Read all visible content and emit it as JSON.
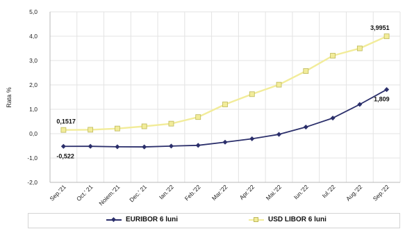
{
  "chart_data": {
    "type": "line",
    "title": "",
    "xlabel": "",
    "ylabel": "Rata %",
    "ylim": [
      -2.0,
      5.0
    ],
    "yticks": [
      "-2,0",
      "-1,0",
      "0,0",
      "1,0",
      "2,0",
      "3,0",
      "4,0",
      "5,0"
    ],
    "grid": true,
    "legend_position": "bottom",
    "categories": [
      "Sep.'21",
      "Oct.' 21",
      "Noiem.'21",
      "Dec.' 21",
      "Ian.'22",
      "Feb.'22",
      "Mar.'22",
      "Apr.'22",
      "Mai.'22",
      "Iun.'22",
      "Iul.'22",
      "Aug.'22",
      "Sep.'22"
    ],
    "series": [
      {
        "name": "EURIBOR 6 luni",
        "color": "#2b2f6b",
        "marker": "diamond",
        "values": [
          -0.522,
          -0.52,
          -0.54,
          -0.545,
          -0.51,
          -0.48,
          -0.35,
          -0.21,
          -0.03,
          0.27,
          0.64,
          1.2,
          1.809
        ]
      },
      {
        "name": "USD LIBOR 6 luni",
        "color": "#f2ec9a",
        "marker": "square",
        "values": [
          0.1517,
          0.16,
          0.21,
          0.3,
          0.41,
          0.68,
          1.2,
          1.62,
          2.01,
          2.57,
          3.2,
          3.5,
          3.9951
        ]
      }
    ],
    "annotations": [
      {
        "text": "0,1517",
        "series": 1,
        "index": 0,
        "position": "above"
      },
      {
        "text": "-0,522",
        "series": 0,
        "index": 0,
        "position": "below"
      },
      {
        "text": "3,9951",
        "series": 1,
        "index": 12,
        "position": "above"
      },
      {
        "text": "1,809",
        "series": 0,
        "index": 12,
        "position": "below"
      }
    ]
  }
}
